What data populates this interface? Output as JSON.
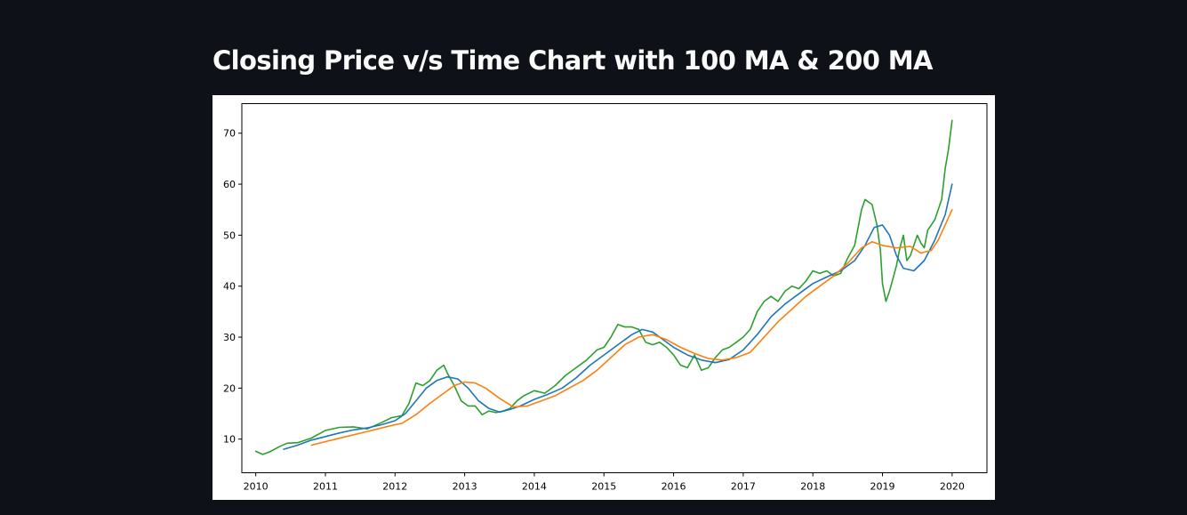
{
  "header": {
    "title": "Closing Price v/s Time Chart with 100 MA & 200 MA"
  },
  "chart_data": {
    "type": "line",
    "title": "",
    "xlabel": "",
    "ylabel": "",
    "xlim": [
      2009.8,
      2020.5
    ],
    "ylim": [
      3.4,
      75.8
    ],
    "grid": false,
    "legend": "none",
    "xticks": [
      2010,
      2011,
      2012,
      2013,
      2014,
      2015,
      2016,
      2017,
      2018,
      2019,
      2020
    ],
    "xtick_labels": [
      "2010",
      "2011",
      "2012",
      "2013",
      "2014",
      "2015",
      "2016",
      "2017",
      "2018",
      "2019",
      "2020"
    ],
    "yticks": [
      10,
      20,
      30,
      40,
      50,
      60,
      70
    ],
    "ytick_labels": [
      "10",
      "20",
      "30",
      "40",
      "50",
      "60",
      "70"
    ],
    "series": [
      {
        "color": "#2ca02c",
        "x": [
          2010.0,
          2010.1,
          2010.2,
          2010.35,
          2010.45,
          2010.6,
          2010.8,
          2011.0,
          2011.2,
          2011.4,
          2011.6,
          2011.8,
          2011.95,
          2012.1,
          2012.2,
          2012.3,
          2012.4,
          2012.5,
          2012.6,
          2012.7,
          2012.75,
          2012.85,
          2012.95,
          2013.05,
          2013.15,
          2013.25,
          2013.35,
          2013.45,
          2013.55,
          2013.65,
          2013.75,
          2013.85,
          2014.0,
          2014.15,
          2014.3,
          2014.45,
          2014.6,
          2014.75,
          2014.9,
          2015.0,
          2015.1,
          2015.2,
          2015.3,
          2015.4,
          2015.5,
          2015.6,
          2015.7,
          2015.8,
          2015.9,
          2016.0,
          2016.1,
          2016.2,
          2016.3,
          2016.4,
          2016.5,
          2016.6,
          2016.7,
          2016.8,
          2016.9,
          2017.0,
          2017.1,
          2017.2,
          2017.3,
          2017.4,
          2017.5,
          2017.6,
          2017.7,
          2017.8,
          2017.9,
          2018.0,
          2018.1,
          2018.2,
          2018.3,
          2018.4,
          2018.5,
          2018.6,
          2018.7,
          2018.75,
          2018.85,
          2018.92,
          2018.97,
          2019.0,
          2019.05,
          2019.1,
          2019.2,
          2019.25,
          2019.3,
          2019.35,
          2019.4,
          2019.5,
          2019.55,
          2019.6,
          2019.65,
          2019.75,
          2019.85,
          2019.9,
          2019.95,
          2020.0
        ],
        "values": [
          7.6,
          7.0,
          7.5,
          8.6,
          9.2,
          9.3,
          10.2,
          11.7,
          12.3,
          12.4,
          12.0,
          13.2,
          14.2,
          14.6,
          17.0,
          21.0,
          20.5,
          21.5,
          23.5,
          24.5,
          23.0,
          20.5,
          17.5,
          16.5,
          16.5,
          14.8,
          15.5,
          15.2,
          15.5,
          16.0,
          17.5,
          18.5,
          19.5,
          19.0,
          20.5,
          22.5,
          24.0,
          25.5,
          27.5,
          28.0,
          30.0,
          32.5,
          32.0,
          32.0,
          31.5,
          29.0,
          28.5,
          29.0,
          28.0,
          26.5,
          24.5,
          24.0,
          26.5,
          23.5,
          24.0,
          26.0,
          27.5,
          28.0,
          29.0,
          30.0,
          31.5,
          35.0,
          37.0,
          38.0,
          37.0,
          39.0,
          40.0,
          39.5,
          41.0,
          43.0,
          42.5,
          43.0,
          42.0,
          42.5,
          45.5,
          48.0,
          55.0,
          57.0,
          56.0,
          52.0,
          47.0,
          40.5,
          37.0,
          39.0,
          44.0,
          47.5,
          50.0,
          45.0,
          46.0,
          50.0,
          48.5,
          47.5,
          51.0,
          53.0,
          57.0,
          63.0,
          67.0,
          72.5
        ]
      },
      {
        "color": "#1f77b4",
        "x": [
          2010.4,
          2010.6,
          2010.8,
          2011.0,
          2011.2,
          2011.4,
          2011.6,
          2011.8,
          2012.0,
          2012.15,
          2012.3,
          2012.45,
          2012.6,
          2012.75,
          2012.9,
          2013.05,
          2013.2,
          2013.35,
          2013.5,
          2013.65,
          2013.8,
          2014.0,
          2014.2,
          2014.4,
          2014.6,
          2014.8,
          2015.0,
          2015.2,
          2015.4,
          2015.55,
          2015.7,
          2015.85,
          2016.0,
          2016.2,
          2016.4,
          2016.6,
          2016.8,
          2017.0,
          2017.2,
          2017.4,
          2017.6,
          2017.8,
          2018.0,
          2018.2,
          2018.4,
          2018.6,
          2018.75,
          2018.88,
          2019.0,
          2019.1,
          2019.2,
          2019.3,
          2019.45,
          2019.6,
          2019.75,
          2019.9,
          2020.0
        ],
        "values": [
          8.0,
          8.8,
          9.8,
          10.5,
          11.2,
          11.8,
          12.2,
          12.8,
          13.6,
          15.0,
          17.5,
          20.0,
          21.5,
          22.2,
          21.8,
          20.0,
          17.5,
          16.0,
          15.3,
          15.8,
          16.5,
          17.8,
          18.8,
          20.0,
          22.0,
          24.5,
          26.5,
          28.5,
          30.5,
          31.5,
          31.0,
          29.5,
          28.0,
          26.5,
          25.5,
          25.0,
          25.6,
          27.5,
          30.5,
          34.0,
          36.5,
          38.5,
          40.5,
          41.8,
          43.0,
          45.0,
          48.0,
          51.5,
          52.0,
          50.0,
          46.0,
          43.5,
          43.0,
          45.0,
          49.0,
          54.0,
          60.0
        ]
      },
      {
        "color": "#ff7f0e",
        "x": [
          2010.8,
          2011.0,
          2011.3,
          2011.6,
          2011.9,
          2012.1,
          2012.3,
          2012.5,
          2012.7,
          2012.85,
          2013.0,
          2013.15,
          2013.3,
          2013.5,
          2013.7,
          2013.9,
          2014.1,
          2014.3,
          2014.5,
          2014.7,
          2014.9,
          2015.1,
          2015.3,
          2015.5,
          2015.7,
          2015.9,
          2016.1,
          2016.3,
          2016.5,
          2016.7,
          2016.9,
          2017.1,
          2017.3,
          2017.5,
          2017.7,
          2017.9,
          2018.1,
          2018.3,
          2018.5,
          2018.7,
          2018.85,
          2019.0,
          2019.2,
          2019.4,
          2019.55,
          2019.7,
          2019.8,
          2019.9,
          2020.0
        ],
        "values": [
          8.8,
          9.5,
          10.5,
          11.5,
          12.5,
          13.1,
          14.8,
          17.0,
          19.0,
          20.5,
          21.2,
          21.0,
          20.0,
          18.0,
          16.3,
          16.5,
          17.5,
          18.5,
          20.0,
          21.5,
          23.5,
          26.0,
          28.5,
          30.0,
          30.5,
          29.5,
          28.0,
          26.8,
          25.8,
          25.5,
          26.0,
          27.0,
          30.0,
          33.0,
          35.5,
          38.0,
          40.0,
          42.0,
          44.5,
          47.5,
          48.7,
          48.0,
          47.5,
          47.8,
          46.5,
          47.0,
          49.0,
          52.0,
          55.0
        ]
      }
    ]
  }
}
